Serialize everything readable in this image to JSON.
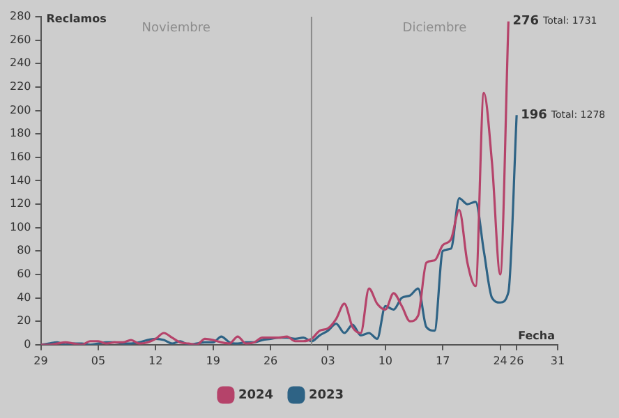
{
  "chart_data": {
    "type": "line",
    "xlabel": "Fecha",
    "ylabel": "Reclamos",
    "x": [
      "--10-29",
      "--10-30",
      "--10-31",
      "--11-01",
      "--11-02",
      "--11-03",
      "--11-04",
      "--11-05",
      "--11-06",
      "--11-07",
      "--11-08",
      "--11-09",
      "--11-10",
      "--11-11",
      "--11-12",
      "--11-13",
      "--11-14",
      "--11-15",
      "--11-16",
      "--11-17",
      "--11-18",
      "--11-19",
      "--11-20",
      "--11-21",
      "--11-22",
      "--11-23",
      "--11-24",
      "--11-25",
      "--11-26",
      "--11-27",
      "--11-28",
      "--11-29",
      "--11-30",
      "--12-01",
      "--12-02",
      "--12-03",
      "--12-04",
      "--12-05",
      "--12-06",
      "--12-07",
      "--12-08",
      "--12-09",
      "--12-10",
      "--12-11",
      "--12-12",
      "--12-13",
      "--12-14",
      "--12-15",
      "--12-16",
      "--12-17",
      "--12-18",
      "--12-19",
      "--12-20",
      "--12-21",
      "--12-22",
      "--12-23",
      "--12-24",
      "--12-25",
      "--12-26"
    ],
    "series": [
      {
        "name": "2024",
        "color": "#b5436a",
        "values": [
          0,
          0,
          1,
          2,
          1,
          0,
          3,
          3,
          1,
          2,
          2,
          4,
          1,
          2,
          5,
          10,
          6,
          2,
          1,
          0,
          5,
          4,
          2,
          1,
          7,
          1,
          2,
          6,
          6,
          6,
          7,
          3,
          3,
          5,
          12,
          14,
          22,
          35,
          15,
          10,
          48,
          35,
          30,
          44,
          33,
          20,
          25,
          70,
          72,
          85,
          90,
          115,
          70,
          50,
          215,
          155,
          60,
          276,
          null
        ],
        "value_labels": [
          null,
          null,
          null,
          null,
          null,
          null,
          null,
          null,
          null,
          null,
          null,
          null,
          null,
          null,
          null,
          null,
          null,
          null,
          null,
          null,
          null,
          null,
          null,
          null,
          null,
          null,
          null,
          null,
          null,
          null,
          null,
          null,
          null,
          null,
          null,
          null,
          null,
          null,
          null,
          null,
          null,
          null,
          null,
          null,
          null,
          null,
          null,
          null,
          null,
          null,
          null,
          null,
          null,
          null,
          null,
          null,
          null,
          "276",
          null
        ]
      },
      {
        "name": "2023",
        "color": "#2e6385",
        "values": [
          0,
          1,
          2,
          0,
          1,
          1,
          0,
          1,
          2,
          2,
          1,
          1,
          2,
          4,
          5,
          4,
          1,
          3,
          0,
          1,
          2,
          2,
          7,
          2,
          1,
          2,
          2,
          4,
          5,
          6,
          6,
          5,
          6,
          3,
          8,
          12,
          18,
          10,
          17,
          8,
          10,
          5,
          33,
          30,
          40,
          42,
          48,
          15,
          12,
          80,
          82,
          125,
          120,
          122,
          80,
          40,
          36,
          45,
          196
        ],
        "value_labels": [
          null,
          null,
          null,
          null,
          null,
          null,
          null,
          null,
          null,
          null,
          null,
          null,
          null,
          null,
          null,
          null,
          null,
          null,
          null,
          null,
          null,
          null,
          null,
          null,
          null,
          null,
          null,
          null,
          null,
          null,
          null,
          null,
          null,
          null,
          null,
          null,
          null,
          null,
          null,
          null,
          null,
          null,
          null,
          null,
          null,
          null,
          null,
          null,
          null,
          null,
          null,
          null,
          null,
          null,
          null,
          null,
          null,
          null,
          "196"
        ]
      }
    ],
    "xlim": [
      "--10-29",
      "--12-31"
    ],
    "xticks": [
      {
        "value": "--10-29",
        "label": "29"
      },
      {
        "value": "--11-05",
        "label": "05"
      },
      {
        "value": "--11-12",
        "label": "12"
      },
      {
        "value": "--11-19",
        "label": "19"
      },
      {
        "value": "--11-26",
        "label": "26"
      },
      {
        "value": "--12-03",
        "label": "03"
      },
      {
        "value": "--12-10",
        "label": "10"
      },
      {
        "value": "--12-17",
        "label": "17"
      },
      {
        "value": "--12-24",
        "label": "24"
      },
      {
        "value": "--12-26",
        "label": "26"
      },
      {
        "value": "--12-31",
        "label": "31"
      }
    ],
    "ylim": [
      0,
      280
    ],
    "yticks": [
      0,
      20,
      40,
      60,
      80,
      100,
      120,
      140,
      160,
      180,
      200,
      220,
      240,
      260,
      280
    ],
    "ref_lines": [
      {
        "axis": "x",
        "value": "--12-01",
        "label": null,
        "color": "#8a8a8a"
      }
    ],
    "annotations": [
      "Noviembre",
      "Diciembre",
      "Total: 1731",
      "Total: 1278"
    ],
    "legend": "bottom",
    "grid": false,
    "marker": "none",
    "line_style": "solid"
  }
}
